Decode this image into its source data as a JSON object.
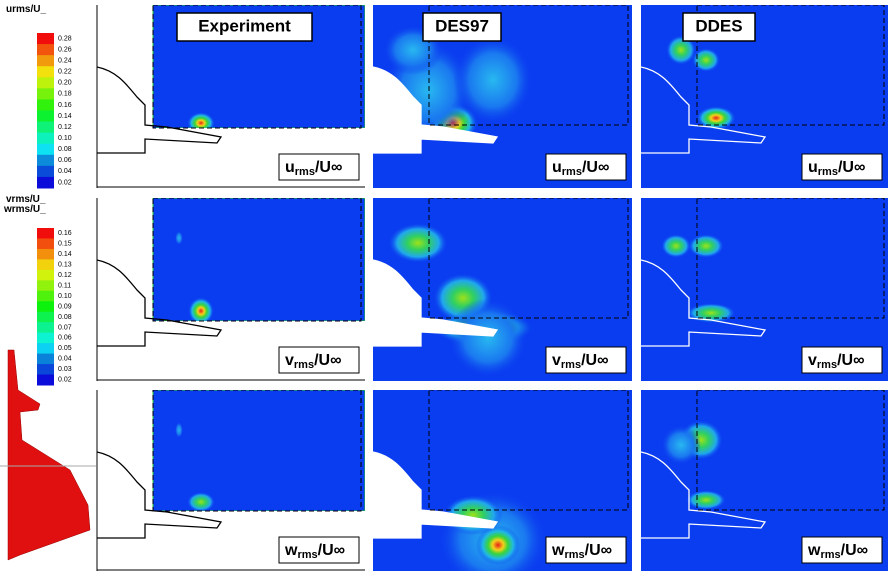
{
  "legends": [
    {
      "title": "urms/U_",
      "ticks": [
        "0.28",
        "0.26",
        "0.24",
        "0.22",
        "0.20",
        "0.18",
        "0.16",
        "0.14",
        "0.12",
        "0.10",
        "0.08",
        "0.06",
        "0.04",
        "0.02"
      ]
    },
    {
      "title": "vrms/U_",
      "overlay": "wrms/U_",
      "ticks": [
        "0.16",
        "0.15",
        "0.14",
        "0.13",
        "0.12",
        "0.11",
        "0.10",
        "0.09",
        "0.08",
        "0.07",
        "0.06",
        "0.05",
        "0.04",
        "0.03",
        "0.02"
      ]
    }
  ],
  "columns": [
    "Experiment",
    "DES97",
    "DDES"
  ],
  "panel_labels": [
    {
      "var": "u",
      "sub": "rms",
      "denom": "/U∞"
    },
    {
      "var": "v",
      "sub": "rms",
      "denom": "/U∞"
    },
    {
      "var": "w",
      "sub": "rms",
      "denom": "/U∞"
    }
  ]
}
